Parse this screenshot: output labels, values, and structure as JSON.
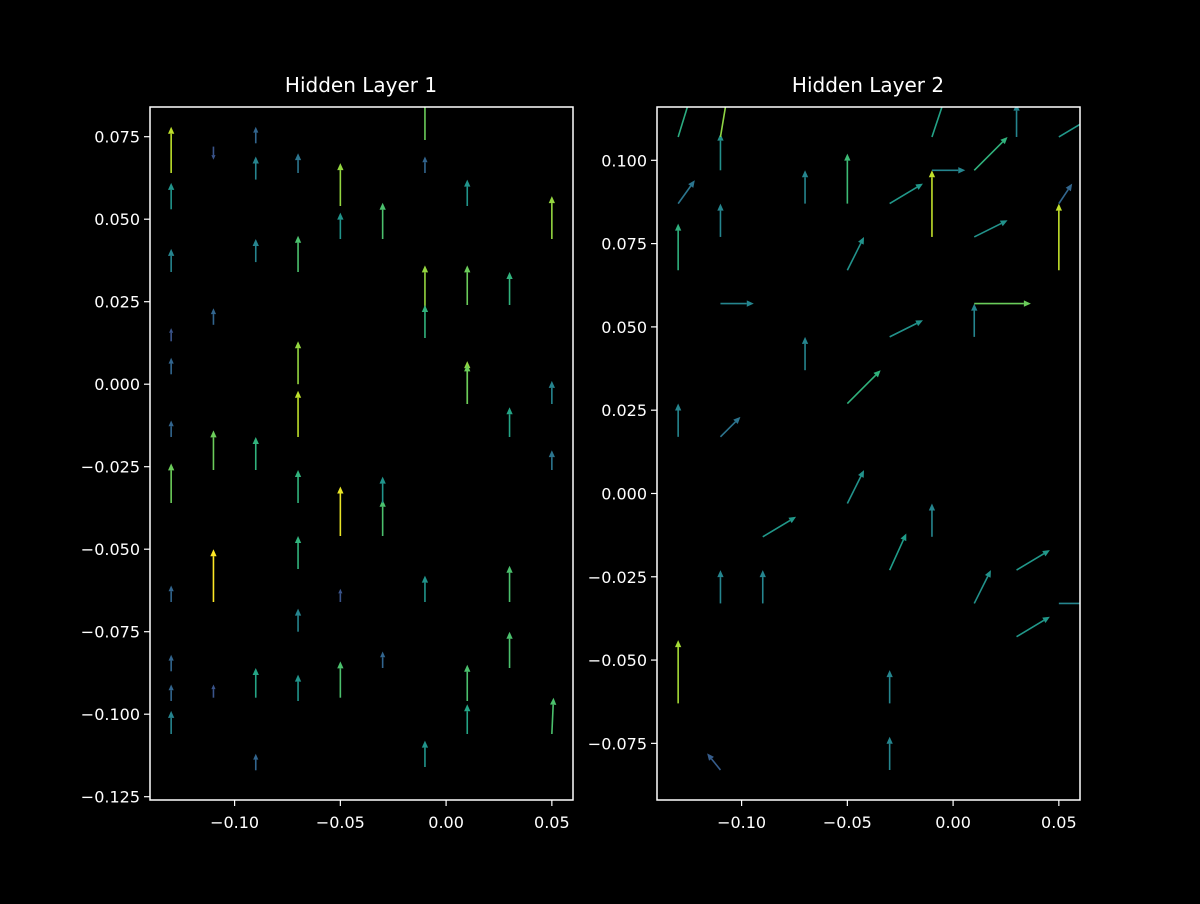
{
  "figure": {
    "background": "#000000",
    "foreground": "#ffffff",
    "colormap": "viridis"
  },
  "chart_data": [
    {
      "type": "quiver",
      "title": "Hidden Layer 1",
      "xlabel": "",
      "ylabel": "",
      "xlim": [
        -0.14,
        0.06
      ],
      "ylim": [
        -0.126,
        0.084
      ],
      "xticks": [
        -0.1,
        -0.05,
        0.0,
        0.05
      ],
      "xtick_labels": [
        "−0.10",
        "−0.05",
        "0.00",
        "0.05"
      ],
      "yticks": [
        0.075,
        0.05,
        0.025,
        0.0,
        -0.025,
        -0.05,
        -0.075,
        -0.1,
        -0.125
      ],
      "ytick_labels": [
        "0.075",
        "0.050",
        "0.025",
        "0.000",
        "−0.025",
        "−0.050",
        "−0.075",
        "−0.100",
        "−0.125"
      ],
      "grid": false,
      "max_magnitude": 0.0155,
      "arrows": [
        {
          "x": -0.13,
          "y": 0.064,
          "u": 0,
          "v": 0.014
        },
        {
          "x": -0.13,
          "y": 0.053,
          "u": 0,
          "v": 0.008
        },
        {
          "x": -0.13,
          "y": 0.034,
          "u": 0,
          "v": 0.007
        },
        {
          "x": -0.13,
          "y": 0.013,
          "u": 0,
          "v": 0.004
        },
        {
          "x": -0.13,
          "y": 0.003,
          "u": 0,
          "v": 0.005
        },
        {
          "x": -0.13,
          "y": -0.016,
          "u": 0,
          "v": 0.005
        },
        {
          "x": -0.13,
          "y": -0.036,
          "u": 0,
          "v": 0.012
        },
        {
          "x": -0.13,
          "y": -0.066,
          "u": 0,
          "v": 0.005
        },
        {
          "x": -0.13,
          "y": -0.087,
          "u": 0,
          "v": 0.005
        },
        {
          "x": -0.13,
          "y": -0.096,
          "u": 0,
          "v": 0.005
        },
        {
          "x": -0.13,
          "y": -0.106,
          "u": 0,
          "v": 0.007
        },
        {
          "x": -0.11,
          "y": 0.072,
          "u": 0,
          "v": -0.004
        },
        {
          "x": -0.11,
          "y": 0.018,
          "u": 0,
          "v": 0.005
        },
        {
          "x": -0.11,
          "y": -0.026,
          "u": 0,
          "v": 0.012
        },
        {
          "x": -0.11,
          "y": -0.066,
          "u": 0,
          "v": 0.016
        },
        {
          "x": -0.11,
          "y": -0.095,
          "u": 0,
          "v": 0.004
        },
        {
          "x": -0.09,
          "y": 0.073,
          "u": 0,
          "v": 0.005
        },
        {
          "x": -0.09,
          "y": 0.062,
          "u": 0,
          "v": 0.007
        },
        {
          "x": -0.09,
          "y": 0.037,
          "u": 0,
          "v": 0.007
        },
        {
          "x": -0.09,
          "y": -0.026,
          "u": 0,
          "v": 0.01
        },
        {
          "x": -0.09,
          "y": -0.095,
          "u": 0,
          "v": 0.009
        },
        {
          "x": -0.09,
          "y": -0.117,
          "u": 0,
          "v": 0.005
        },
        {
          "x": -0.07,
          "y": 0.064,
          "u": 0,
          "v": 0.006
        },
        {
          "x": -0.07,
          "y": 0.034,
          "u": 0,
          "v": 0.011
        },
        {
          "x": -0.07,
          "y": 0.0,
          "u": 0,
          "v": 0.013
        },
        {
          "x": -0.07,
          "y": -0.016,
          "u": 0,
          "v": 0.014
        },
        {
          "x": -0.07,
          "y": -0.036,
          "u": 0,
          "v": 0.01
        },
        {
          "x": -0.07,
          "y": -0.056,
          "u": 0,
          "v": 0.01
        },
        {
          "x": -0.07,
          "y": -0.075,
          "u": 0,
          "v": 0.007
        },
        {
          "x": -0.07,
          "y": -0.096,
          "u": 0,
          "v": 0.008
        },
        {
          "x": -0.05,
          "y": 0.054,
          "u": 0,
          "v": 0.013
        },
        {
          "x": -0.05,
          "y": 0.044,
          "u": 0,
          "v": 0.008
        },
        {
          "x": -0.05,
          "y": -0.046,
          "u": 0,
          "v": 0.015
        },
        {
          "x": -0.05,
          "y": -0.095,
          "u": 0,
          "v": 0.011
        },
        {
          "x": -0.05,
          "y": -0.066,
          "u": 0,
          "v": 0.004
        },
        {
          "x": -0.03,
          "y": 0.044,
          "u": 0,
          "v": 0.011
        },
        {
          "x": -0.03,
          "y": -0.046,
          "u": 0,
          "v": 0.011
        },
        {
          "x": -0.03,
          "y": -0.036,
          "u": 0,
          "v": 0.008
        },
        {
          "x": -0.03,
          "y": -0.086,
          "u": 0,
          "v": 0.005
        },
        {
          "x": -0.01,
          "y": 0.074,
          "u": 0,
          "v": 0.012
        },
        {
          "x": -0.01,
          "y": 0.064,
          "u": 0,
          "v": 0.005
        },
        {
          "x": -0.01,
          "y": 0.023,
          "u": 0,
          "v": 0.013
        },
        {
          "x": -0.01,
          "y": 0.014,
          "u": 0,
          "v": 0.01
        },
        {
          "x": -0.01,
          "y": -0.066,
          "u": 0,
          "v": 0.008
        },
        {
          "x": -0.01,
          "y": -0.116,
          "u": 0,
          "v": 0.008
        },
        {
          "x": 0.01,
          "y": 0.054,
          "u": 0,
          "v": 0.008
        },
        {
          "x": 0.01,
          "y": 0.024,
          "u": 0,
          "v": 0.012
        },
        {
          "x": 0.01,
          "y": -0.006,
          "u": 0,
          "v": 0.013
        },
        {
          "x": 0.01,
          "y": -0.006,
          "u": 0,
          "v": 0.012
        },
        {
          "x": 0.01,
          "y": -0.096,
          "u": 0,
          "v": 0.011
        },
        {
          "x": 0.01,
          "y": -0.106,
          "u": 0,
          "v": 0.009
        },
        {
          "x": 0.03,
          "y": 0.024,
          "u": 0,
          "v": 0.01
        },
        {
          "x": 0.03,
          "y": -0.016,
          "u": 0,
          "v": 0.009
        },
        {
          "x": 0.03,
          "y": -0.066,
          "u": 0,
          "v": 0.011
        },
        {
          "x": 0.03,
          "y": -0.086,
          "u": 0,
          "v": 0.011
        },
        {
          "x": 0.05,
          "y": 0.044,
          "u": 0,
          "v": 0.013
        },
        {
          "x": 0.05,
          "y": -0.006,
          "u": 0,
          "v": 0.007
        },
        {
          "x": 0.05,
          "y": -0.026,
          "u": 0,
          "v": 0.006
        },
        {
          "x": 0.05,
          "y": -0.106,
          "u": 0.0005,
          "v": 0.011
        }
      ]
    },
    {
      "type": "quiver",
      "title": "Hidden Layer 2",
      "xlabel": "",
      "ylabel": "",
      "xlim": [
        -0.14,
        0.06
      ],
      "ylim": [
        -0.092,
        0.116
      ],
      "xticks": [
        -0.1,
        -0.05,
        0.0,
        0.05
      ],
      "xtick_labels": [
        "−0.10",
        "−0.05",
        "0.00",
        "0.05"
      ],
      "yticks": [
        0.1,
        0.075,
        0.05,
        0.025,
        0.0,
        -0.025,
        -0.05,
        -0.075
      ],
      "ytick_labels": [
        "0.100",
        "0.075",
        "0.050",
        "0.025",
        "0.000",
        "−0.025",
        "−0.050",
        "−0.075"
      ],
      "grid": false,
      "max_magnitude": 0.022,
      "arrows": [
        {
          "x": -0.13,
          "y": 0.107,
          "u": 0.004,
          "v": 0.013
        },
        {
          "x": -0.13,
          "y": 0.067,
          "u": 0,
          "v": 0.014
        },
        {
          "x": -0.13,
          "y": 0.087,
          "u": 0.005,
          "v": 0.007
        },
        {
          "x": -0.13,
          "y": 0.017,
          "u": 0,
          "v": 0.01
        },
        {
          "x": -0.13,
          "y": -0.063,
          "u": 0,
          "v": 0.019
        },
        {
          "x": -0.11,
          "y": 0.097,
          "u": 0,
          "v": 0.011
        },
        {
          "x": -0.11,
          "y": 0.107,
          "u": 0.003,
          "v": 0.018
        },
        {
          "x": -0.11,
          "y": 0.077,
          "u": 0,
          "v": 0.01
        },
        {
          "x": -0.11,
          "y": 0.057,
          "u": 0.01,
          "v": 0
        },
        {
          "x": -0.11,
          "y": 0.017,
          "u": 0.006,
          "v": 0.006
        },
        {
          "x": -0.11,
          "y": -0.033,
          "u": 0,
          "v": 0.01
        },
        {
          "x": -0.11,
          "y": -0.083,
          "u": -0.004,
          "v": 0.005
        },
        {
          "x": -0.09,
          "y": -0.013,
          "u": 0.01,
          "v": 0.006
        },
        {
          "x": -0.09,
          "y": -0.033,
          "u": 0,
          "v": 0.01
        },
        {
          "x": -0.07,
          "y": 0.087,
          "u": 0,
          "v": 0.01
        },
        {
          "x": -0.07,
          "y": 0.037,
          "u": 0,
          "v": 0.01
        },
        {
          "x": -0.05,
          "y": 0.087,
          "u": 0,
          "v": 0.015
        },
        {
          "x": -0.05,
          "y": 0.067,
          "u": 0.005,
          "v": 0.01
        },
        {
          "x": -0.05,
          "y": 0.027,
          "u": 0.01,
          "v": 0.01
        },
        {
          "x": -0.05,
          "y": -0.003,
          "u": 0.005,
          "v": 0.01
        },
        {
          "x": -0.03,
          "y": 0.087,
          "u": 0.01,
          "v": 0.006
        },
        {
          "x": -0.03,
          "y": 0.047,
          "u": 0.01,
          "v": 0.005
        },
        {
          "x": -0.03,
          "y": -0.023,
          "u": 0.005,
          "v": 0.011
        },
        {
          "x": -0.03,
          "y": -0.063,
          "u": 0,
          "v": 0.01
        },
        {
          "x": -0.03,
          "y": -0.083,
          "u": 0,
          "v": 0.01
        },
        {
          "x": -0.01,
          "y": 0.107,
          "u": 0.004,
          "v": 0.012
        },
        {
          "x": -0.01,
          "y": 0.077,
          "u": 0,
          "v": 0.02
        },
        {
          "x": -0.01,
          "y": 0.097,
          "u": 0.01,
          "v": 0
        },
        {
          "x": -0.01,
          "y": -0.013,
          "u": 0,
          "v": 0.01
        },
        {
          "x": 0.01,
          "y": 0.097,
          "u": 0.01,
          "v": 0.01
        },
        {
          "x": 0.01,
          "y": 0.077,
          "u": 0.01,
          "v": 0.005
        },
        {
          "x": 0.01,
          "y": 0.047,
          "u": 0,
          "v": 0.01
        },
        {
          "x": 0.01,
          "y": -0.033,
          "u": 0.005,
          "v": 0.01
        },
        {
          "x": 0.01,
          "y": 0.057,
          "u": 0.017,
          "v": 0
        },
        {
          "x": 0.03,
          "y": 0.107,
          "u": 0,
          "v": 0.01
        },
        {
          "x": 0.03,
          "y": -0.023,
          "u": 0.01,
          "v": 0.006
        },
        {
          "x": 0.03,
          "y": -0.043,
          "u": 0.01,
          "v": 0.006
        },
        {
          "x": 0.05,
          "y": 0.067,
          "u": 0,
          "v": 0.02
        },
        {
          "x": 0.05,
          "y": 0.107,
          "u": 0.01,
          "v": 0.006
        },
        {
          "x": 0.05,
          "y": -0.033,
          "u": 0.01,
          "v": 0
        },
        {
          "x": 0.05,
          "y": 0.087,
          "u": 0.004,
          "v": 0.006
        }
      ]
    }
  ]
}
